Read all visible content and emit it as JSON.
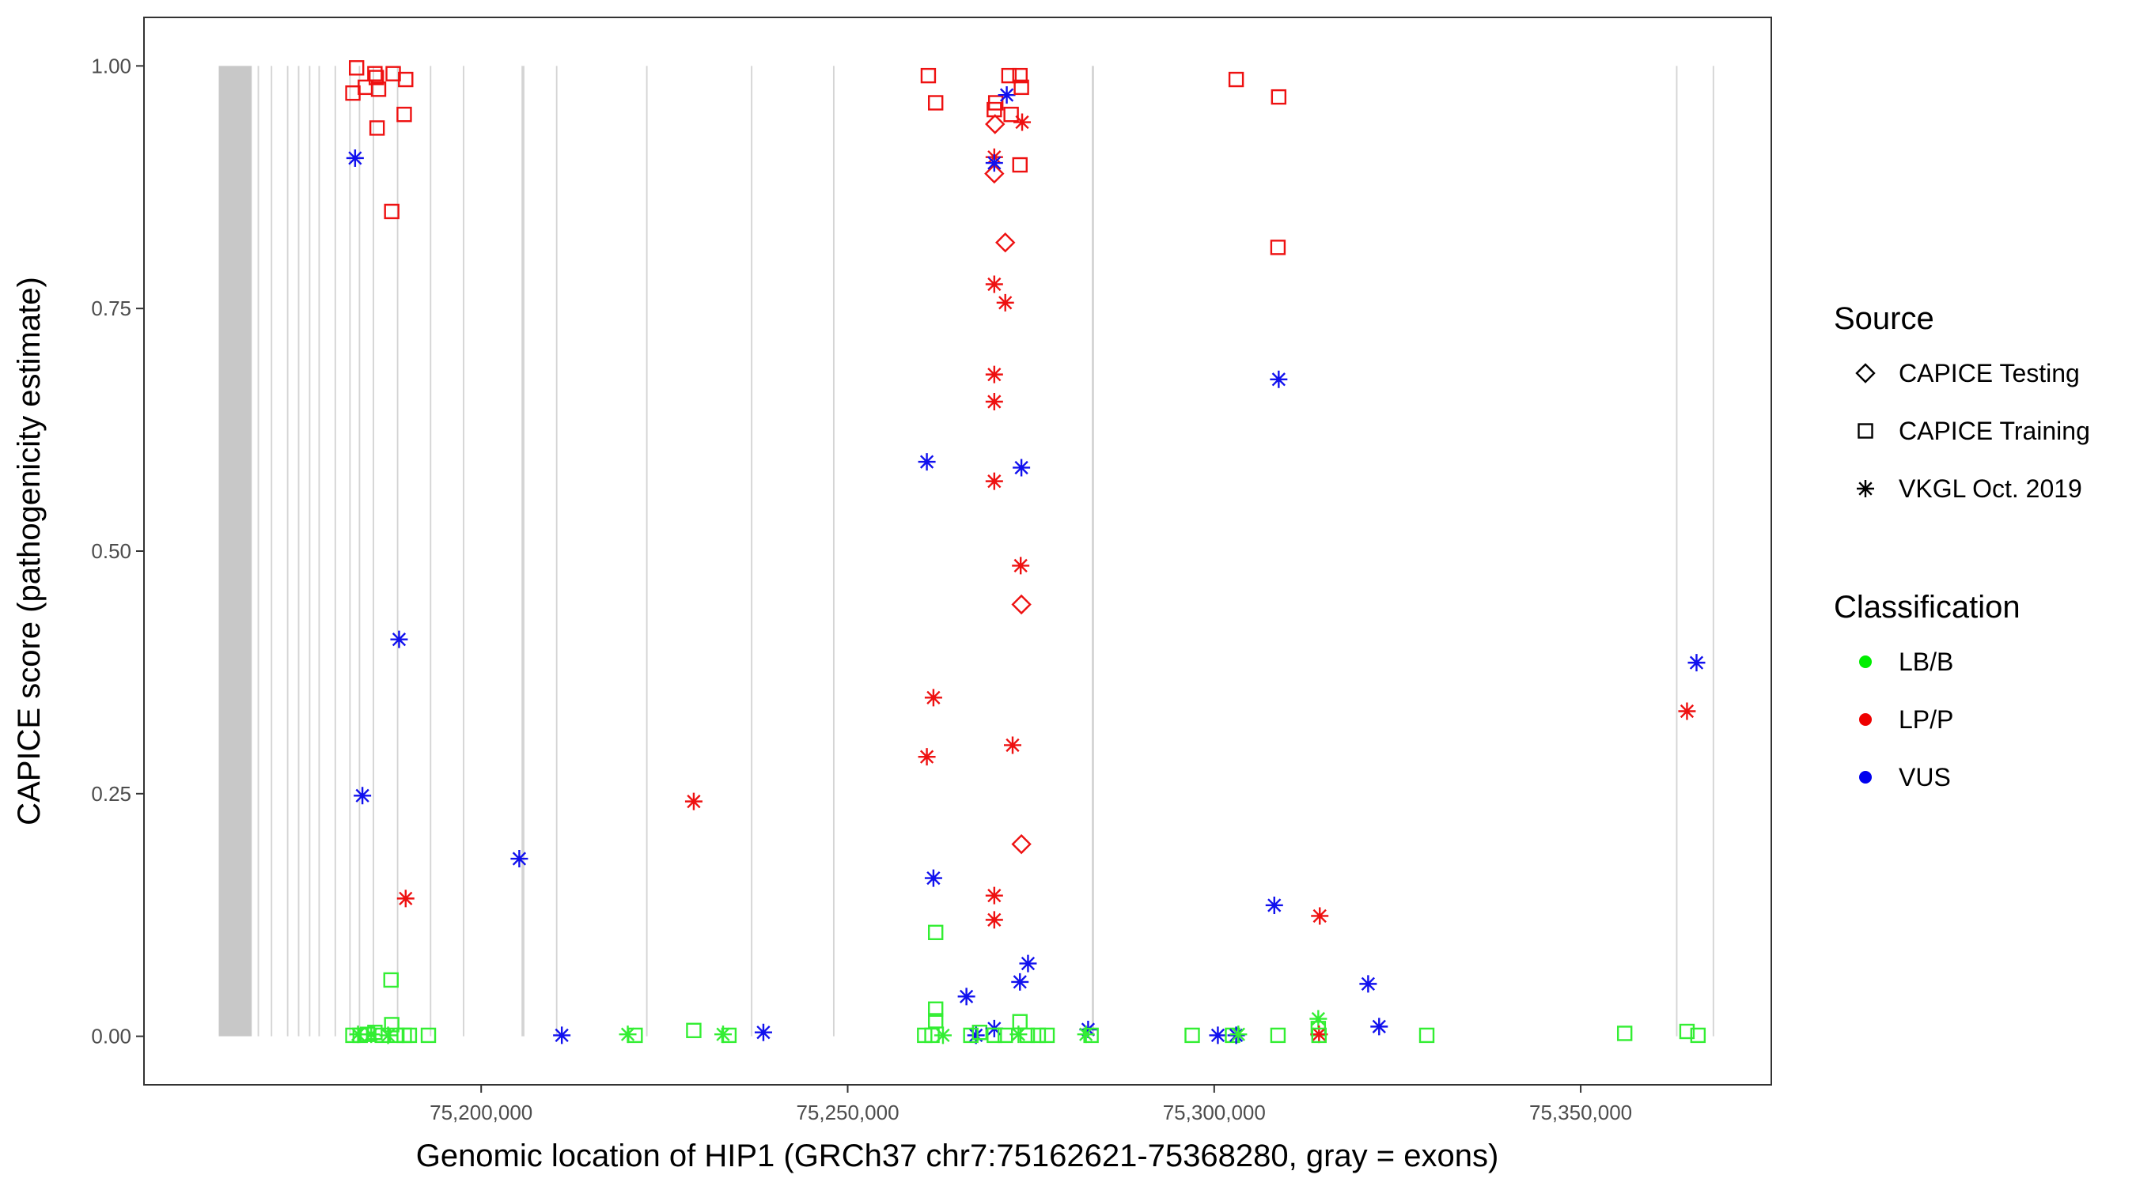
{
  "chart_data": {
    "type": "scatter",
    "title": "",
    "xlabel": "Genomic location of HIP1 (GRCh37 chr7:75162621-75368280, gray = exons)",
    "ylabel": "CAPICE score (pathogenicity estimate)",
    "xlim": [
      75154000,
      75376000
    ],
    "ylim": [
      -0.05,
      1.05
    ],
    "x_ticks": [
      75200000,
      75250000,
      75300000,
      75350000
    ],
    "x_tick_labels": [
      "75,200,000",
      "75,250,000",
      "75,300,000",
      "75,350,000"
    ],
    "y_ticks": [
      0,
      0.25,
      0.5,
      0.75,
      1.0
    ],
    "y_tick_labels": [
      "0.00",
      "0.25",
      "0.50",
      "0.75",
      "1.00"
    ],
    "grid": false,
    "exons": [
      [
        75164200,
        75168700
      ],
      [
        75169500,
        75169700
      ],
      [
        75171300,
        75171500
      ],
      [
        75173500,
        75173700
      ],
      [
        75175000,
        75175200
      ],
      [
        75176500,
        75176700
      ],
      [
        75177800,
        75178000
      ],
      [
        75180000,
        75180200
      ],
      [
        75182000,
        75182200
      ],
      [
        75183300,
        75183500
      ],
      [
        75185200,
        75185400
      ],
      [
        75188500,
        75188700
      ],
      [
        75193000,
        75193200
      ],
      [
        75197500,
        75197700
      ],
      [
        75205500,
        75205900
      ],
      [
        75210200,
        75210400
      ],
      [
        75222500,
        75222700
      ],
      [
        75236800,
        75237000
      ],
      [
        75248000,
        75248200
      ],
      [
        75283300,
        75283600
      ],
      [
        75363000,
        75363200
      ],
      [
        75368000,
        75368200
      ]
    ],
    "legend": {
      "placement": "right",
      "source_title": "Source",
      "source_entries": [
        {
          "label": "CAPICE Testing",
          "shape": "diamond"
        },
        {
          "label": "CAPICE Training",
          "shape": "square"
        },
        {
          "label": "VKGL Oct. 2019",
          "shape": "asterisk"
        }
      ],
      "class_title": "Classification",
      "class_entries": [
        {
          "label": "LB/B",
          "color": "#00ee00"
        },
        {
          "label": "LP/P",
          "color": "#ee0000"
        },
        {
          "label": "VUS",
          "color": "#0000ee"
        }
      ]
    },
    "colors": {
      "LB/B": "#33ee33",
      "LP/P": "#ee1111",
      "VUS": "#1111ee"
    },
    "points": [
      {
        "x": 75183000,
        "y": 0.998,
        "cls": "LP/P",
        "src": "square"
      },
      {
        "x": 75182500,
        "y": 0.972,
        "cls": "LP/P",
        "src": "square"
      },
      {
        "x": 75184200,
        "y": 0.978,
        "cls": "LP/P",
        "src": "square"
      },
      {
        "x": 75185500,
        "y": 0.992,
        "cls": "LP/P",
        "src": "square"
      },
      {
        "x": 75185700,
        "y": 0.988,
        "cls": "LP/P",
        "src": "square"
      },
      {
        "x": 75186000,
        "y": 0.976,
        "cls": "LP/P",
        "src": "square"
      },
      {
        "x": 75185800,
        "y": 0.936,
        "cls": "LP/P",
        "src": "square"
      },
      {
        "x": 75187800,
        "y": 0.85,
        "cls": "LP/P",
        "src": "square"
      },
      {
        "x": 75188000,
        "y": 0.992,
        "cls": "LP/P",
        "src": "square"
      },
      {
        "x": 75189700,
        "y": 0.986,
        "cls": "LP/P",
        "src": "square"
      },
      {
        "x": 75189500,
        "y": 0.95,
        "cls": "LP/P",
        "src": "square"
      },
      {
        "x": 75182800,
        "y": 0.905,
        "cls": "VUS",
        "src": "asterisk"
      },
      {
        "x": 75183800,
        "y": 0.248,
        "cls": "VUS",
        "src": "asterisk"
      },
      {
        "x": 75188800,
        "y": 0.409,
        "cls": "VUS",
        "src": "asterisk"
      },
      {
        "x": 75189700,
        "y": 0.142,
        "cls": "LP/P",
        "src": "asterisk"
      },
      {
        "x": 75187700,
        "y": 0.058,
        "cls": "LB/B",
        "src": "square"
      },
      {
        "x": 75187800,
        "y": 0.012,
        "cls": "LB/B",
        "src": "square"
      },
      {
        "x": 75182500,
        "y": 0.001,
        "cls": "LB/B",
        "src": "square"
      },
      {
        "x": 75183500,
        "y": 0.001,
        "cls": "LB/B",
        "src": "square"
      },
      {
        "x": 75184500,
        "y": 0.002,
        "cls": "LB/B",
        "src": "square"
      },
      {
        "x": 75185500,
        "y": 0.004,
        "cls": "LB/B",
        "src": "square"
      },
      {
        "x": 75186500,
        "y": 0.001,
        "cls": "LB/B",
        "src": "square"
      },
      {
        "x": 75188500,
        "y": 0.001,
        "cls": "LB/B",
        "src": "square"
      },
      {
        "x": 75189500,
        "y": 0.001,
        "cls": "LB/B",
        "src": "square"
      },
      {
        "x": 75190200,
        "y": 0.001,
        "cls": "LB/B",
        "src": "square"
      },
      {
        "x": 75192800,
        "y": 0.001,
        "cls": "LB/B",
        "src": "square"
      },
      {
        "x": 75183200,
        "y": 0.002,
        "cls": "LB/B",
        "src": "asterisk"
      },
      {
        "x": 75185000,
        "y": 0.002,
        "cls": "LB/B",
        "src": "asterisk"
      },
      {
        "x": 75187300,
        "y": 0.001,
        "cls": "LB/B",
        "src": "asterisk"
      },
      {
        "x": 75205200,
        "y": 0.183,
        "cls": "VUS",
        "src": "asterisk"
      },
      {
        "x": 75211000,
        "y": 0.001,
        "cls": "VUS",
        "src": "asterisk"
      },
      {
        "x": 75229000,
        "y": 0.242,
        "cls": "LP/P",
        "src": "asterisk"
      },
      {
        "x": 75220000,
        "y": 0.002,
        "cls": "LB/B",
        "src": "asterisk"
      },
      {
        "x": 75221000,
        "y": 0.001,
        "cls": "LB/B",
        "src": "square"
      },
      {
        "x": 75229000,
        "y": 0.006,
        "cls": "LB/B",
        "src": "square"
      },
      {
        "x": 75233000,
        "y": 0.002,
        "cls": "LB/B",
        "src": "asterisk"
      },
      {
        "x": 75233800,
        "y": 0.001,
        "cls": "LB/B",
        "src": "square"
      },
      {
        "x": 75238500,
        "y": 0.004,
        "cls": "VUS",
        "src": "asterisk"
      },
      {
        "x": 75261000,
        "y": 0.99,
        "cls": "LP/P",
        "src": "square"
      },
      {
        "x": 75262000,
        "y": 0.962,
        "cls": "LP/P",
        "src": "square"
      },
      {
        "x": 75260800,
        "y": 0.592,
        "cls": "VUS",
        "src": "asterisk"
      },
      {
        "x": 75261700,
        "y": 0.349,
        "cls": "LP/P",
        "src": "asterisk"
      },
      {
        "x": 75260800,
        "y": 0.288,
        "cls": "LP/P",
        "src": "asterisk"
      },
      {
        "x": 75261700,
        "y": 0.163,
        "cls": "VUS",
        "src": "asterisk"
      },
      {
        "x": 75262000,
        "y": 0.107,
        "cls": "LB/B",
        "src": "square"
      },
      {
        "x": 75262000,
        "y": 0.028,
        "cls": "LB/B",
        "src": "square"
      },
      {
        "x": 75262000,
        "y": 0.016,
        "cls": "LB/B",
        "src": "square"
      },
      {
        "x": 75260500,
        "y": 0.001,
        "cls": "LB/B",
        "src": "square"
      },
      {
        "x": 75261500,
        "y": 0.001,
        "cls": "LB/B",
        "src": "square"
      },
      {
        "x": 75263000,
        "y": 0.001,
        "cls": "LB/B",
        "src": "asterisk"
      },
      {
        "x": 75266200,
        "y": 0.041,
        "cls": "VUS",
        "src": "asterisk"
      },
      {
        "x": 75267500,
        "y": 0.001,
        "cls": "VUS",
        "src": "asterisk"
      },
      {
        "x": 75266800,
        "y": 0.001,
        "cls": "LB/B",
        "src": "square"
      },
      {
        "x": 75268000,
        "y": 0.004,
        "cls": "LB/B",
        "src": "square"
      },
      {
        "x": 75270000,
        "y": 0.955,
        "cls": "LP/P",
        "src": "square"
      },
      {
        "x": 75270200,
        "y": 0.962,
        "cls": "LP/P",
        "src": "square"
      },
      {
        "x": 75270100,
        "y": 0.94,
        "cls": "LP/P",
        "src": "diamond"
      },
      {
        "x": 75270000,
        "y": 0.889,
        "cls": "LP/P",
        "src": "diamond"
      },
      {
        "x": 75270000,
        "y": 0.906,
        "cls": "LP/P",
        "src": "asterisk"
      },
      {
        "x": 75270000,
        "y": 0.9,
        "cls": "VUS",
        "src": "asterisk"
      },
      {
        "x": 75270000,
        "y": 0.775,
        "cls": "LP/P",
        "src": "asterisk"
      },
      {
        "x": 75270000,
        "y": 0.682,
        "cls": "LP/P",
        "src": "asterisk"
      },
      {
        "x": 75270000,
        "y": 0.654,
        "cls": "LP/P",
        "src": "asterisk"
      },
      {
        "x": 75270000,
        "y": 0.572,
        "cls": "LP/P",
        "src": "asterisk"
      },
      {
        "x": 75270000,
        "y": 0.145,
        "cls": "LP/P",
        "src": "asterisk"
      },
      {
        "x": 75270000,
        "y": 0.12,
        "cls": "LP/P",
        "src": "asterisk"
      },
      {
        "x": 75270000,
        "y": 0.008,
        "cls": "VUS",
        "src": "asterisk"
      },
      {
        "x": 75270000,
        "y": 0.001,
        "cls": "LB/B",
        "src": "square"
      },
      {
        "x": 75271500,
        "y": 0.818,
        "cls": "LP/P",
        "src": "diamond"
      },
      {
        "x": 75271500,
        "y": 0.756,
        "cls": "LP/P",
        "src": "asterisk"
      },
      {
        "x": 75271700,
        "y": 0.97,
        "cls": "VUS",
        "src": "asterisk"
      },
      {
        "x": 75272000,
        "y": 0.99,
        "cls": "LP/P",
        "src": "square"
      },
      {
        "x": 75272300,
        "y": 0.95,
        "cls": "LP/P",
        "src": "square"
      },
      {
        "x": 75272500,
        "y": 0.3,
        "cls": "LP/P",
        "src": "asterisk"
      },
      {
        "x": 75271500,
        "y": 0.001,
        "cls": "LB/B",
        "src": "square"
      },
      {
        "x": 75273500,
        "y": 0.99,
        "cls": "LP/P",
        "src": "square"
      },
      {
        "x": 75273700,
        "y": 0.978,
        "cls": "LP/P",
        "src": "square"
      },
      {
        "x": 75273500,
        "y": 0.898,
        "cls": "LP/P",
        "src": "square"
      },
      {
        "x": 75273800,
        "y": 0.942,
        "cls": "LP/P",
        "src": "asterisk"
      },
      {
        "x": 75273700,
        "y": 0.586,
        "cls": "VUS",
        "src": "asterisk"
      },
      {
        "x": 75273600,
        "y": 0.485,
        "cls": "LP/P",
        "src": "asterisk"
      },
      {
        "x": 75273700,
        "y": 0.445,
        "cls": "LP/P",
        "src": "diamond"
      },
      {
        "x": 75273700,
        "y": 0.198,
        "cls": "LP/P",
        "src": "diamond"
      },
      {
        "x": 75274600,
        "y": 0.075,
        "cls": "VUS",
        "src": "asterisk"
      },
      {
        "x": 75273500,
        "y": 0.056,
        "cls": "VUS",
        "src": "asterisk"
      },
      {
        "x": 75273500,
        "y": 0.015,
        "cls": "LB/B",
        "src": "square"
      },
      {
        "x": 75273300,
        "y": 0.002,
        "cls": "LB/B",
        "src": "asterisk"
      },
      {
        "x": 75274500,
        "y": 0.001,
        "cls": "LB/B",
        "src": "square"
      },
      {
        "x": 75276000,
        "y": 0.001,
        "cls": "LB/B",
        "src": "square"
      },
      {
        "x": 75277200,
        "y": 0.001,
        "cls": "LB/B",
        "src": "square"
      },
      {
        "x": 75282800,
        "y": 0.007,
        "cls": "VUS",
        "src": "asterisk"
      },
      {
        "x": 75283200,
        "y": 0.001,
        "cls": "LB/B",
        "src": "square"
      },
      {
        "x": 75282500,
        "y": 0.002,
        "cls": "LB/B",
        "src": "asterisk"
      },
      {
        "x": 75297000,
        "y": 0.001,
        "cls": "LB/B",
        "src": "square"
      },
      {
        "x": 75300500,
        "y": 0.001,
        "cls": "VUS",
        "src": "asterisk"
      },
      {
        "x": 75302500,
        "y": 0.001,
        "cls": "LB/B",
        "src": "square"
      },
      {
        "x": 75303000,
        "y": 0.001,
        "cls": "VUS",
        "src": "asterisk"
      },
      {
        "x": 75303300,
        "y": 0.002,
        "cls": "LB/B",
        "src": "asterisk"
      },
      {
        "x": 75303000,
        "y": 0.986,
        "cls": "LP/P",
        "src": "square"
      },
      {
        "x": 75308800,
        "y": 0.968,
        "cls": "LP/P",
        "src": "square"
      },
      {
        "x": 75308700,
        "y": 0.813,
        "cls": "LP/P",
        "src": "square"
      },
      {
        "x": 75308800,
        "y": 0.677,
        "cls": "VUS",
        "src": "asterisk"
      },
      {
        "x": 75308200,
        "y": 0.135,
        "cls": "VUS",
        "src": "asterisk"
      },
      {
        "x": 75308700,
        "y": 0.001,
        "cls": "LB/B",
        "src": "square"
      },
      {
        "x": 75314400,
        "y": 0.124,
        "cls": "LP/P",
        "src": "asterisk"
      },
      {
        "x": 75314200,
        "y": 0.018,
        "cls": "LB/B",
        "src": "asterisk"
      },
      {
        "x": 75314200,
        "y": 0.008,
        "cls": "LB/B",
        "src": "square"
      },
      {
        "x": 75314300,
        "y": 0.002,
        "cls": "LP/P",
        "src": "asterisk"
      },
      {
        "x": 75314300,
        "y": 0.001,
        "cls": "LB/B",
        "src": "square"
      },
      {
        "x": 75321000,
        "y": 0.054,
        "cls": "VUS",
        "src": "asterisk"
      },
      {
        "x": 75322500,
        "y": 0.01,
        "cls": "VUS",
        "src": "asterisk"
      },
      {
        "x": 75329000,
        "y": 0.001,
        "cls": "LB/B",
        "src": "square"
      },
      {
        "x": 75356000,
        "y": 0.003,
        "cls": "LB/B",
        "src": "square"
      },
      {
        "x": 75364500,
        "y": 0.005,
        "cls": "LB/B",
        "src": "square"
      },
      {
        "x": 75366000,
        "y": 0.001,
        "cls": "LB/B",
        "src": "square"
      },
      {
        "x": 75364500,
        "y": 0.335,
        "cls": "LP/P",
        "src": "asterisk"
      },
      {
        "x": 75365800,
        "y": 0.385,
        "cls": "VUS",
        "src": "asterisk"
      }
    ]
  }
}
